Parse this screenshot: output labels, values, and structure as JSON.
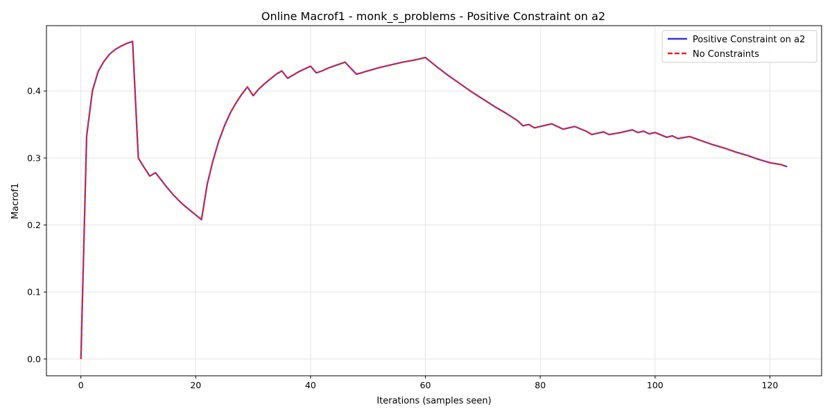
{
  "chart_data": {
    "type": "line",
    "title": "Online Macrof1 - monk_s_problems - Positive Constraint on a2",
    "xlabel": "Iterations (samples seen)",
    "ylabel": "Macrof1",
    "xlim": [
      -6,
      129
    ],
    "ylim": [
      -0.025,
      0.4975
    ],
    "xticks": [
      0,
      20,
      40,
      60,
      80,
      100,
      120
    ],
    "yticks": [
      0.0,
      0.1,
      0.2,
      0.3,
      0.4
    ],
    "grid": true,
    "legend_position": "top-right",
    "series": [
      {
        "name": "Positive Constraint on a2",
        "color": "#3333dd",
        "style": "solid",
        "points": [
          [
            0,
            0.0
          ],
          [
            1,
            0.333
          ],
          [
            2,
            0.4
          ],
          [
            3,
            0.429
          ],
          [
            4,
            0.444
          ],
          [
            5,
            0.455
          ],
          [
            6,
            0.462
          ],
          [
            7,
            0.467
          ],
          [
            8,
            0.471
          ],
          [
            9,
            0.474
          ],
          [
            10,
            0.3
          ],
          [
            11,
            0.286
          ],
          [
            12,
            0.273
          ],
          [
            13,
            0.278
          ],
          [
            14,
            0.267
          ],
          [
            15,
            0.256
          ],
          [
            16,
            0.246
          ],
          [
            17,
            0.237
          ],
          [
            18,
            0.229
          ],
          [
            19,
            0.222
          ],
          [
            20,
            0.215
          ],
          [
            21,
            0.208
          ],
          [
            22,
            0.261
          ],
          [
            23,
            0.296
          ],
          [
            24,
            0.325
          ],
          [
            25,
            0.348
          ],
          [
            26,
            0.367
          ],
          [
            27,
            0.382
          ],
          [
            28,
            0.395
          ],
          [
            29,
            0.406
          ],
          [
            30,
            0.393
          ],
          [
            31,
            0.403
          ],
          [
            32,
            0.411
          ],
          [
            33,
            0.418
          ],
          [
            34,
            0.425
          ],
          [
            35,
            0.43
          ],
          [
            36,
            0.419
          ],
          [
            37,
            0.424
          ],
          [
            38,
            0.429
          ],
          [
            39,
            0.433
          ],
          [
            40,
            0.437
          ],
          [
            41,
            0.427
          ],
          [
            42,
            0.43
          ],
          [
            43,
            0.434
          ],
          [
            44,
            0.437
          ],
          [
            45,
            0.44
          ],
          [
            46,
            0.443
          ],
          [
            47,
            0.434
          ],
          [
            48,
            0.425
          ],
          [
            50,
            0.43
          ],
          [
            52,
            0.435
          ],
          [
            54,
            0.439
          ],
          [
            56,
            0.443
          ],
          [
            58,
            0.446
          ],
          [
            60,
            0.45
          ],
          [
            62,
            0.436
          ],
          [
            64,
            0.423
          ],
          [
            66,
            0.411
          ],
          [
            68,
            0.399
          ],
          [
            70,
            0.388
          ],
          [
            72,
            0.377
          ],
          [
            74,
            0.367
          ],
          [
            76,
            0.356
          ],
          [
            77,
            0.348
          ],
          [
            78,
            0.35
          ],
          [
            79,
            0.345
          ],
          [
            80,
            0.347
          ],
          [
            82,
            0.351
          ],
          [
            84,
            0.343
          ],
          [
            86,
            0.347
          ],
          [
            88,
            0.34
          ],
          [
            89,
            0.335
          ],
          [
            91,
            0.339
          ],
          [
            92,
            0.335
          ],
          [
            94,
            0.338
          ],
          [
            96,
            0.342
          ],
          [
            97,
            0.338
          ],
          [
            98,
            0.34
          ],
          [
            99,
            0.336
          ],
          [
            100,
            0.338
          ],
          [
            102,
            0.331
          ],
          [
            103,
            0.333
          ],
          [
            104,
            0.329
          ],
          [
            106,
            0.332
          ],
          [
            108,
            0.326
          ],
          [
            110,
            0.32
          ],
          [
            112,
            0.315
          ],
          [
            114,
            0.309
          ],
          [
            116,
            0.304
          ],
          [
            118,
            0.298
          ],
          [
            120,
            0.293
          ],
          [
            122,
            0.29
          ],
          [
            123,
            0.287
          ]
        ]
      },
      {
        "name": "No Constraints",
        "color": "#ee2222",
        "style": "dashed",
        "points": [
          [
            0,
            0.0
          ],
          [
            1,
            0.333
          ],
          [
            2,
            0.4
          ],
          [
            3,
            0.429
          ],
          [
            4,
            0.444
          ],
          [
            5,
            0.455
          ],
          [
            6,
            0.462
          ],
          [
            7,
            0.467
          ],
          [
            8,
            0.471
          ],
          [
            9,
            0.474
          ],
          [
            10,
            0.3
          ],
          [
            11,
            0.286
          ],
          [
            12,
            0.273
          ],
          [
            13,
            0.278
          ],
          [
            14,
            0.267
          ],
          [
            15,
            0.256
          ],
          [
            16,
            0.246
          ],
          [
            17,
            0.237
          ],
          [
            18,
            0.229
          ],
          [
            19,
            0.222
          ],
          [
            20,
            0.215
          ],
          [
            21,
            0.208
          ],
          [
            22,
            0.261
          ],
          [
            23,
            0.296
          ],
          [
            24,
            0.325
          ],
          [
            25,
            0.348
          ],
          [
            26,
            0.367
          ],
          [
            27,
            0.382
          ],
          [
            28,
            0.395
          ],
          [
            29,
            0.406
          ],
          [
            30,
            0.393
          ],
          [
            31,
            0.403
          ],
          [
            32,
            0.411
          ],
          [
            33,
            0.418
          ],
          [
            34,
            0.425
          ],
          [
            35,
            0.43
          ],
          [
            36,
            0.419
          ],
          [
            37,
            0.424
          ],
          [
            38,
            0.429
          ],
          [
            39,
            0.433
          ],
          [
            40,
            0.437
          ],
          [
            41,
            0.427
          ],
          [
            42,
            0.43
          ],
          [
            43,
            0.434
          ],
          [
            44,
            0.437
          ],
          [
            45,
            0.44
          ],
          [
            46,
            0.443
          ],
          [
            47,
            0.434
          ],
          [
            48,
            0.425
          ],
          [
            50,
            0.43
          ],
          [
            52,
            0.435
          ],
          [
            54,
            0.439
          ],
          [
            56,
            0.443
          ],
          [
            58,
            0.446
          ],
          [
            60,
            0.45
          ],
          [
            62,
            0.436
          ],
          [
            64,
            0.423
          ],
          [
            66,
            0.411
          ],
          [
            68,
            0.399
          ],
          [
            70,
            0.388
          ],
          [
            72,
            0.377
          ],
          [
            74,
            0.367
          ],
          [
            76,
            0.356
          ],
          [
            77,
            0.348
          ],
          [
            78,
            0.35
          ],
          [
            79,
            0.345
          ],
          [
            80,
            0.347
          ],
          [
            82,
            0.351
          ],
          [
            84,
            0.343
          ],
          [
            86,
            0.347
          ],
          [
            88,
            0.34
          ],
          [
            89,
            0.335
          ],
          [
            91,
            0.339
          ],
          [
            92,
            0.335
          ],
          [
            94,
            0.338
          ],
          [
            96,
            0.342
          ],
          [
            97,
            0.338
          ],
          [
            98,
            0.34
          ],
          [
            99,
            0.336
          ],
          [
            100,
            0.338
          ],
          [
            102,
            0.331
          ],
          [
            103,
            0.333
          ],
          [
            104,
            0.329
          ],
          [
            106,
            0.332
          ],
          [
            108,
            0.326
          ],
          [
            110,
            0.32
          ],
          [
            112,
            0.315
          ],
          [
            114,
            0.309
          ],
          [
            116,
            0.304
          ],
          [
            118,
            0.298
          ],
          [
            120,
            0.293
          ],
          [
            122,
            0.29
          ],
          [
            123,
            0.287
          ]
        ]
      }
    ]
  }
}
